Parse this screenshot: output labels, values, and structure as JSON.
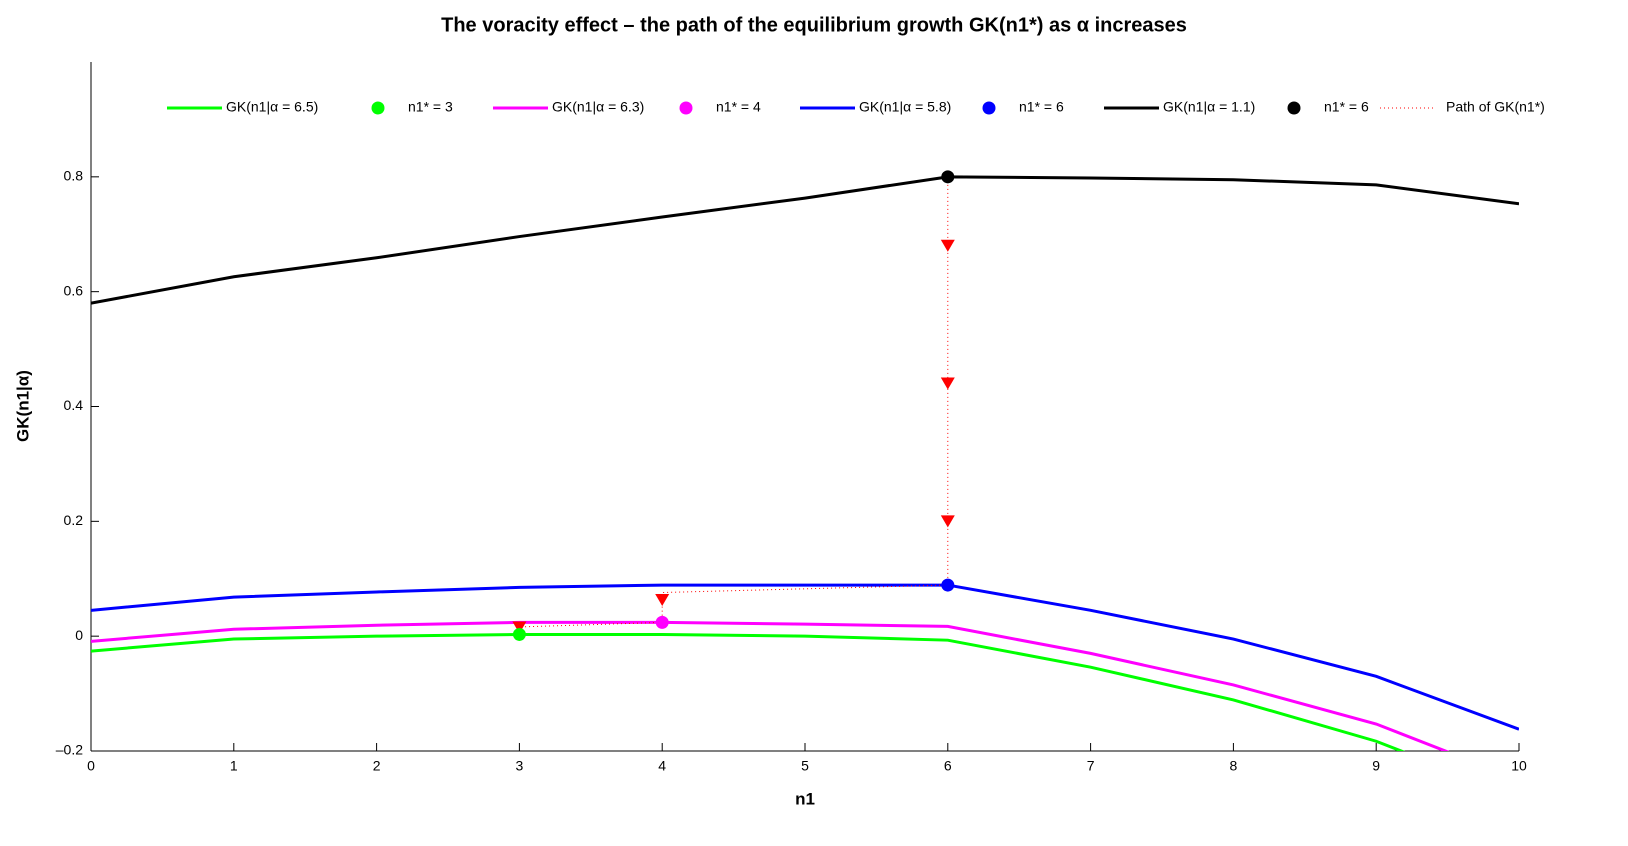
{
  "chart_data": {
    "type": "line",
    "title": "The voracity effect – the path of the equilibrium growth GK(n1*)  as α increases",
    "xlabel": "n1",
    "ylabel": "GK(n1|α)",
    "x": [
      0,
      1,
      2,
      3,
      4,
      5,
      6,
      7,
      8,
      9,
      10
    ],
    "xlim": [
      0,
      10
    ],
    "xticks": [
      0,
      1,
      2,
      3,
      4,
      5,
      6,
      7,
      8,
      9,
      10
    ],
    "ylim": [
      -0.2,
      1.0
    ],
    "yticks": [
      {
        "value": -0.2,
        "label": "–0.2"
      },
      0,
      0.2,
      0.4,
      0.6,
      0.8
    ],
    "series": [
      {
        "name": "GK(n1|α = 6.5)",
        "color": "#00ff00",
        "values": [
          -0.026,
          -0.005,
          0,
          0.003,
          0.003,
          0,
          -0.007,
          -0.054,
          -0.111,
          -0.183,
          -0.28
        ],
        "optimum": {
          "name": "n1* = 3",
          "x": 3,
          "value": 0.003
        }
      },
      {
        "name": "GK(n1|α = 6.3)",
        "color": "#ff00ff",
        "values": [
          -0.009,
          0.012,
          0.019,
          0.024,
          0.024,
          0.021,
          0.017,
          -0.03,
          -0.085,
          -0.153,
          -0.25
        ],
        "optimum": {
          "name": "n1* = 4",
          "x": 4,
          "value": 0.024
        }
      },
      {
        "name": "GK(n1|α = 5.8)",
        "color": "#0000ff",
        "values": [
          0.045,
          0.068,
          0.077,
          0.085,
          0.089,
          0.089,
          0.089,
          0.045,
          -0.005,
          -0.07,
          -0.162
        ],
        "optimum": {
          "name": "n1* = 6",
          "x": 6,
          "value": 0.089
        }
      },
      {
        "name": "GK(n1|α = 1.1)",
        "color": "#000000",
        "values": [
          0.58,
          0.626,
          0.659,
          0.696,
          0.73,
          0.763,
          0.8,
          0.798,
          0.795,
          0.786,
          0.753
        ],
        "optimum": {
          "name": "n1* = 6",
          "x": 6,
          "value": 0.8
        }
      }
    ],
    "path": {
      "name": "Path of GK(n1*)",
      "color": "#ff0000",
      "x": [
        6,
        6,
        4,
        4,
        3
      ],
      "values": [
        0.8,
        0.089,
        0.076,
        0.024,
        0.016
      ],
      "markers": {
        "x": [
          6,
          6,
          6,
          4,
          3
        ],
        "values": [
          0.68,
          0.44,
          0.2,
          0.063,
          0.015
        ]
      }
    }
  }
}
